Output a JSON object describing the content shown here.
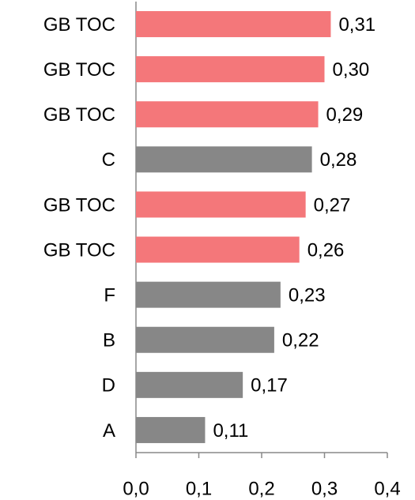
{
  "chart_data": {
    "type": "bar",
    "orientation": "horizontal",
    "categories": [
      "GB TOC",
      "GB TOC",
      "GB TOC",
      "C",
      "GB TOC",
      "GB TOC",
      "F",
      "B",
      "D",
      "A"
    ],
    "values": [
      0.31,
      0.3,
      0.29,
      0.28,
      0.27,
      0.26,
      0.23,
      0.22,
      0.17,
      0.11
    ],
    "value_labels": [
      "0,31",
      "0,30",
      "0,29",
      "0,28",
      "0,27",
      "0,26",
      "0,23",
      "0,22",
      "0,17",
      "0,11"
    ],
    "colors": [
      "#f4777a",
      "#f4777a",
      "#f4777a",
      "#878787",
      "#f4777a",
      "#f4777a",
      "#878787",
      "#878787",
      "#878787",
      "#878787"
    ],
    "xlim": [
      0,
      0.4
    ],
    "xticks": [
      {
        "value": 0,
        "label": "0,0"
      },
      {
        "value": 0.1,
        "label": "0,1"
      },
      {
        "value": 0.2,
        "label": "0,2"
      },
      {
        "value": 0.3,
        "label": "0,3"
      },
      {
        "value": 0.4,
        "label": "0,4"
      }
    ],
    "grid": false
  }
}
